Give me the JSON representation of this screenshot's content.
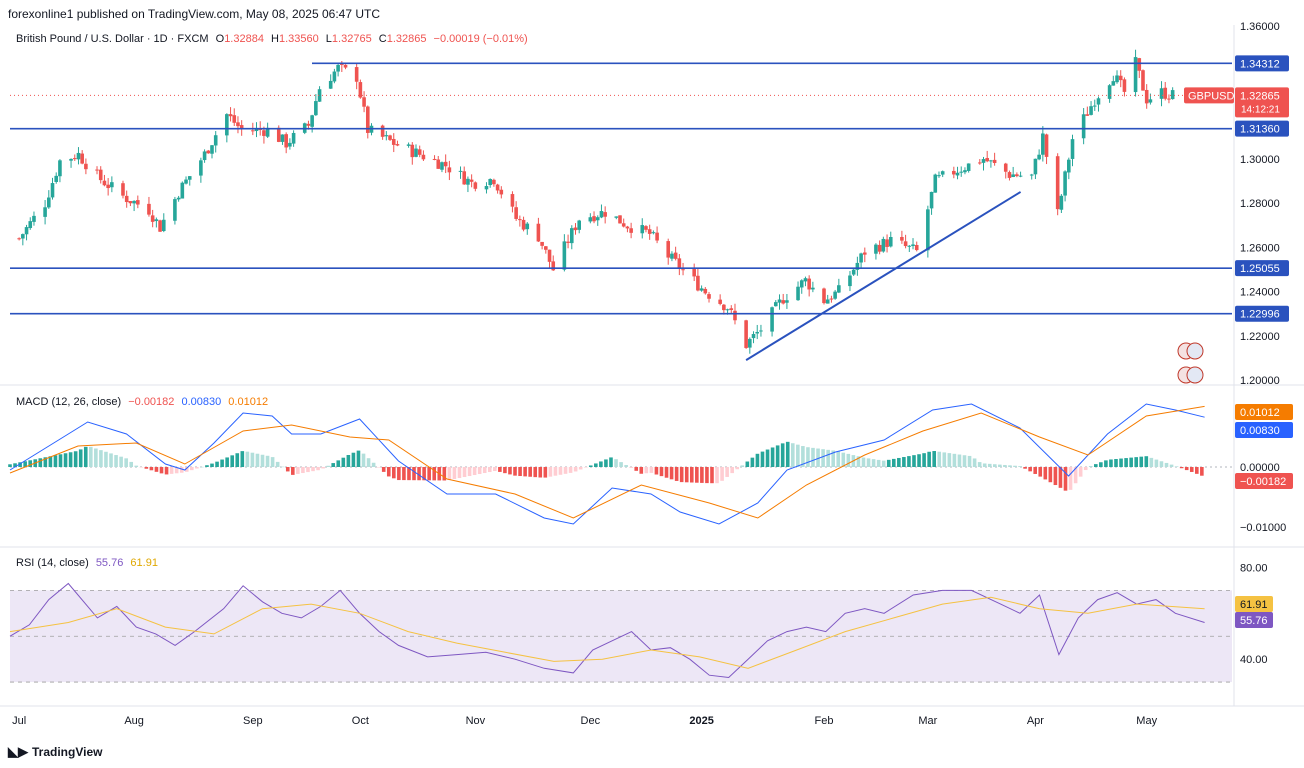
{
  "header": {
    "published": "forexonline1 published on TradingView.com, May 08, 2025 06:47 UTC"
  },
  "legend": {
    "symbol": "British Pound / U.S. Dollar · 1D · FXCM",
    "o_label": "O",
    "o_val": "1.32884",
    "h_label": "H",
    "h_val": "1.33560",
    "l_label": "L",
    "l_val": "1.32765",
    "c_label": "C",
    "c_val": "1.32865",
    "change": "−0.00019 (−0.01%)"
  },
  "macd_legend": {
    "name": "MACD (12, 26, close)",
    "hist": "−0.00182",
    "macd": "0.00830",
    "signal": "0.01012"
  },
  "rsi_legend": {
    "name": "RSI (14, close)",
    "rsi": "55.76",
    "ma": "61.91"
  },
  "footer": {
    "brand": "TradingView"
  },
  "colors": {
    "up": "#26a69a",
    "down": "#ef5350",
    "level": "#2a52be",
    "macd": "#2962ff",
    "signal": "#f57c00",
    "rsi": "#7e57c2",
    "rsi_ma": "#f5c242",
    "rsi_band": "#ede7f6"
  },
  "chart_data": [
    {
      "type": "candlestick",
      "title": "British Pound / U.S. Dollar · 1D · FXCM",
      "x_ticks": [
        "Jul",
        "Aug",
        "Sep",
        "Oct",
        "Nov",
        "Dec",
        "2025",
        "Feb",
        "Mar",
        "Apr",
        "May"
      ],
      "y_ticks": [
        "1.36000",
        "1.30000",
        "1.28000",
        "1.26000",
        "1.24000",
        "1.22000",
        "1.20000"
      ],
      "ylim": [
        1.2,
        1.36
      ],
      "horizontal_levels": [
        {
          "label": "1.34312",
          "value": 1.34312
        },
        {
          "label": "1.31360",
          "value": 1.3136
        },
        {
          "label": "1.25055",
          "value": 1.25055
        },
        {
          "label": "1.22996",
          "value": 1.22996
        }
      ],
      "last_price": {
        "symbol": "GBPUSD",
        "price": "1.32865",
        "value": 1.32865,
        "countdown": "14:12:21"
      },
      "trendline": {
        "from": {
          "date": "2025-01-13",
          "price": 1.209
        },
        "to": {
          "date": "2025-03-28",
          "price": 1.285
        }
      },
      "close_series": [
        {
          "date": "2024-07-01",
          "close": 1.264
        },
        {
          "date": "2024-07-08",
          "close": 1.28
        },
        {
          "date": "2024-07-12",
          "close": 1.299
        },
        {
          "date": "2024-07-17",
          "close": 1.302
        },
        {
          "date": "2024-07-22",
          "close": 1.292
        },
        {
          "date": "2024-07-29",
          "close": 1.283
        },
        {
          "date": "2024-08-05",
          "close": 1.277
        },
        {
          "date": "2024-08-08",
          "close": 1.269
        },
        {
          "date": "2024-08-13",
          "close": 1.285
        },
        {
          "date": "2024-08-20",
          "close": 1.302
        },
        {
          "date": "2024-08-26",
          "close": 1.32
        },
        {
          "date": "2024-08-30",
          "close": 1.313
        },
        {
          "date": "2024-09-06",
          "close": 1.313
        },
        {
          "date": "2024-09-11",
          "close": 1.307
        },
        {
          "date": "2024-09-17",
          "close": 1.315
        },
        {
          "date": "2024-09-20",
          "close": 1.332
        },
        {
          "date": "2024-09-25",
          "close": 1.341
        },
        {
          "date": "2024-09-30",
          "close": 1.337
        },
        {
          "date": "2024-10-03",
          "close": 1.313
        },
        {
          "date": "2024-10-10",
          "close": 1.307
        },
        {
          "date": "2024-10-17",
          "close": 1.302
        },
        {
          "date": "2024-10-24",
          "close": 1.297
        },
        {
          "date": "2024-10-31",
          "close": 1.289
        },
        {
          "date": "2024-11-06",
          "close": 1.291
        },
        {
          "date": "2024-11-12",
          "close": 1.273
        },
        {
          "date": "2024-11-18",
          "close": 1.265
        },
        {
          "date": "2024-11-22",
          "close": 1.25
        },
        {
          "date": "2024-11-29",
          "close": 1.273
        },
        {
          "date": "2024-12-06",
          "close": 1.276
        },
        {
          "date": "2024-12-12",
          "close": 1.27
        },
        {
          "date": "2024-12-18",
          "close": 1.266
        },
        {
          "date": "2024-12-23",
          "close": 1.256
        },
        {
          "date": "2025-01-02",
          "close": 1.24
        },
        {
          "date": "2025-01-08",
          "close": 1.233
        },
        {
          "date": "2025-01-13",
          "close": 1.216
        },
        {
          "date": "2025-01-17",
          "close": 1.223
        },
        {
          "date": "2025-01-23",
          "close": 1.237
        },
        {
          "date": "2025-01-29",
          "close": 1.245
        },
        {
          "date": "2025-02-03",
          "close": 1.236
        },
        {
          "date": "2025-02-07",
          "close": 1.24
        },
        {
          "date": "2025-02-14",
          "close": 1.258
        },
        {
          "date": "2025-02-21",
          "close": 1.263
        },
        {
          "date": "2025-02-28",
          "close": 1.258
        },
        {
          "date": "2025-03-05",
          "close": 1.29
        },
        {
          "date": "2025-03-11",
          "close": 1.295
        },
        {
          "date": "2025-03-18",
          "close": 1.3
        },
        {
          "date": "2025-03-25",
          "close": 1.293
        },
        {
          "date": "2025-03-31",
          "close": 1.292
        },
        {
          "date": "2025-04-03",
          "close": 1.31
        },
        {
          "date": "2025-04-07",
          "close": 1.275
        },
        {
          "date": "2025-04-11",
          "close": 1.309
        },
        {
          "date": "2025-04-17",
          "close": 1.327
        },
        {
          "date": "2025-04-22",
          "close": 1.338
        },
        {
          "date": "2025-04-25",
          "close": 1.33
        },
        {
          "date": "2025-04-28",
          "close": 1.343
        },
        {
          "date": "2025-05-01",
          "close": 1.327
        },
        {
          "date": "2025-05-05",
          "close": 1.33
        },
        {
          "date": "2025-05-08",
          "close": 1.3287
        }
      ]
    },
    {
      "type": "line",
      "title": "MACD (12, 26, close)",
      "y_ticks": [
        "0.00000",
        "−0.01000"
      ],
      "latest": {
        "macd": "0.00830",
        "signal": "0.01012",
        "histogram": "−0.00182"
      },
      "series": [
        {
          "name": "MACD",
          "points": [
            [
              0,
              -0.0005
            ],
            [
              0.05,
              0.0045
            ],
            [
              0.08,
              0.0075
            ],
            [
              0.12,
              0.0055
            ],
            [
              0.16,
              0.0005
            ],
            [
              0.18,
              -0.0005
            ],
            [
              0.21,
              0.004
            ],
            [
              0.24,
              0.009
            ],
            [
              0.27,
              0.0085
            ],
            [
              0.29,
              0.0055
            ],
            [
              0.32,
              0.0055
            ],
            [
              0.36,
              0.008
            ],
            [
              0.4,
              0.001
            ],
            [
              0.45,
              -0.0045
            ],
            [
              0.5,
              -0.0045
            ],
            [
              0.55,
              -0.0085
            ],
            [
              0.58,
              -0.0095
            ],
            [
              0.62,
              -0.0035
            ],
            [
              0.66,
              -0.0045
            ],
            [
              0.69,
              -0.0075
            ],
            [
              0.73,
              -0.0095
            ],
            [
              0.77,
              -0.006
            ],
            [
              0.8,
              -0.0005
            ],
            [
              0.85,
              0.0025
            ],
            [
              0.9,
              0.0045
            ],
            [
              0.95,
              0.0095
            ],
            [
              0.99,
              0.0105
            ],
            [
              1.04,
              0.0065
            ],
            [
              1.09,
              -0.0015
            ],
            [
              1.13,
              0.0055
            ],
            [
              1.17,
              0.0105
            ],
            [
              1.2,
              0.0095
            ],
            [
              1.23,
              0.0083
            ]
          ]
        },
        {
          "name": "Signal",
          "points": [
            [
              0,
              -0.001
            ],
            [
              0.07,
              0.0035
            ],
            [
              0.13,
              0.004
            ],
            [
              0.18,
              0.0005
            ],
            [
              0.24,
              0.006
            ],
            [
              0.29,
              0.007
            ],
            [
              0.35,
              0.005
            ],
            [
              0.39,
              0.0045
            ],
            [
              0.45,
              -0.002
            ],
            [
              0.52,
              -0.0045
            ],
            [
              0.58,
              -0.0085
            ],
            [
              0.65,
              -0.003
            ],
            [
              0.72,
              -0.006
            ],
            [
              0.77,
              -0.0085
            ],
            [
              0.82,
              -0.003
            ],
            [
              0.88,
              0.002
            ],
            [
              0.94,
              0.006
            ],
            [
              1.0,
              0.009
            ],
            [
              1.06,
              0.005
            ],
            [
              1.11,
              0.002
            ],
            [
              1.17,
              0.0085
            ],
            [
              1.23,
              0.0101
            ]
          ]
        }
      ]
    },
    {
      "type": "line",
      "title": "RSI (14, close)",
      "y_ticks": [
        "80.00",
        "40.00"
      ],
      "band": [
        30,
        70
      ],
      "latest": {
        "rsi": "55.76",
        "ma": "61.91"
      },
      "series": [
        {
          "name": "RSI",
          "points": [
            [
              0,
              50
            ],
            [
              0.02,
              55
            ],
            [
              0.04,
              66
            ],
            [
              0.06,
              73
            ],
            [
              0.09,
              58
            ],
            [
              0.11,
              63
            ],
            [
              0.13,
              54
            ],
            [
              0.15,
              51
            ],
            [
              0.17,
              46
            ],
            [
              0.19,
              52
            ],
            [
              0.22,
              62
            ],
            [
              0.24,
              72
            ],
            [
              0.26,
              65
            ],
            [
              0.28,
              60
            ],
            [
              0.3,
              58
            ],
            [
              0.32,
              63
            ],
            [
              0.34,
              70
            ],
            [
              0.36,
              60
            ],
            [
              0.38,
              52
            ],
            [
              0.4,
              46
            ],
            [
              0.43,
              41
            ],
            [
              0.46,
              42
            ],
            [
              0.49,
              43
            ],
            [
              0.52,
              40
            ],
            [
              0.55,
              36
            ],
            [
              0.58,
              34
            ],
            [
              0.6,
              44
            ],
            [
              0.62,
              48
            ],
            [
              0.64,
              52
            ],
            [
              0.66,
              44
            ],
            [
              0.68,
              45
            ],
            [
              0.7,
              40
            ],
            [
              0.72,
              33
            ],
            [
              0.74,
              32
            ],
            [
              0.76,
              40
            ],
            [
              0.78,
              48
            ],
            [
              0.8,
              52
            ],
            [
              0.82,
              54
            ],
            [
              0.84,
              52
            ],
            [
              0.86,
              60
            ],
            [
              0.88,
              62
            ],
            [
              0.9,
              60
            ],
            [
              0.93,
              68
            ],
            [
              0.96,
              70
            ],
            [
              0.99,
              70
            ],
            [
              1.02,
              64
            ],
            [
              1.04,
              60
            ],
            [
              1.06,
              68
            ],
            [
              1.08,
              42
            ],
            [
              1.1,
              58
            ],
            [
              1.12,
              66
            ],
            [
              1.14,
              69
            ],
            [
              1.16,
              64
            ],
            [
              1.18,
              66
            ],
            [
              1.2,
              60
            ],
            [
              1.23,
              56
            ]
          ]
        },
        {
          "name": "RSI MA",
          "points": [
            [
              0,
              52
            ],
            [
              0.06,
              56
            ],
            [
              0.11,
              62
            ],
            [
              0.16,
              54
            ],
            [
              0.21,
              51
            ],
            [
              0.26,
              62
            ],
            [
              0.31,
              64
            ],
            [
              0.36,
              60
            ],
            [
              0.41,
              52
            ],
            [
              0.46,
              47
            ],
            [
              0.51,
              43
            ],
            [
              0.56,
              39
            ],
            [
              0.61,
              40
            ],
            [
              0.66,
              44
            ],
            [
              0.71,
              41
            ],
            [
              0.76,
              36
            ],
            [
              0.81,
              44
            ],
            [
              0.86,
              52
            ],
            [
              0.91,
              58
            ],
            [
              0.96,
              64
            ],
            [
              1.01,
              67
            ],
            [
              1.06,
              62
            ],
            [
              1.11,
              60
            ],
            [
              1.16,
              64
            ],
            [
              1.23,
              62
            ]
          ]
        }
      ]
    }
  ]
}
